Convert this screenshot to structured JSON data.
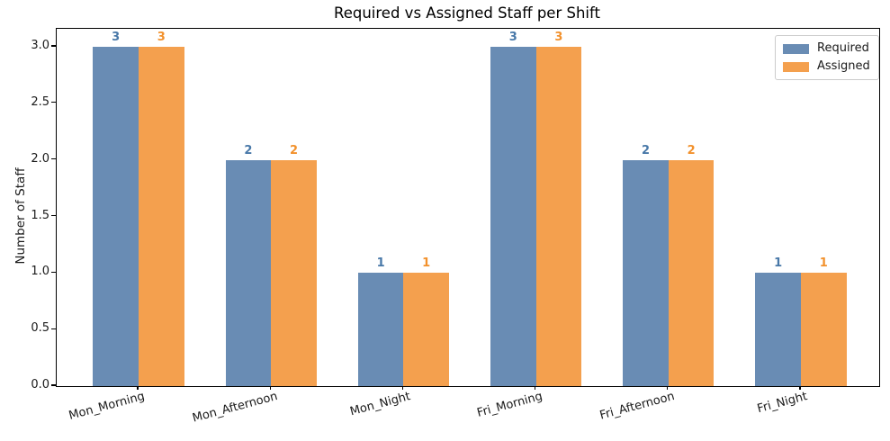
{
  "chart_data": {
    "type": "bar",
    "title": "Required vs Assigned Staff per Shift",
    "ylabel": "Number of Staff",
    "xlabel": "",
    "categories": [
      "Mon_Morning",
      "Mon_Afternoon",
      "Mon_Night",
      "Fri_Morning",
      "Fri_Afternoon",
      "Fri_Night"
    ],
    "series": [
      {
        "name": "Required",
        "color": "#698CB4",
        "label_color": "#4878A8",
        "values": [
          3,
          2,
          1,
          3,
          2,
          1
        ]
      },
      {
        "name": "Assigned",
        "color": "#F4A04E",
        "label_color": "#F2912C",
        "values": [
          3,
          2,
          1,
          3,
          2,
          1
        ]
      }
    ],
    "value_labels": [
      {
        "series": "Required",
        "labels": [
          "3",
          "2",
          "1",
          "3",
          "2",
          "1"
        ]
      },
      {
        "series": "Assigned",
        "labels": [
          "3",
          "2",
          "1",
          "3",
          "2",
          "1"
        ]
      }
    ],
    "ylim": [
      0,
      3.16
    ],
    "yticks": [
      0,
      0.5,
      1,
      1.5,
      2,
      2.5,
      3
    ],
    "ytick_labels": [
      "0.0",
      "0.5",
      "1.0",
      "1.5",
      "2.0",
      "2.5",
      "3.0"
    ],
    "grid": false,
    "legend_position": "upper right",
    "xtick_rotation_deg": 15,
    "spine_color": "#000000",
    "text_color": "#1a1a1a"
  }
}
